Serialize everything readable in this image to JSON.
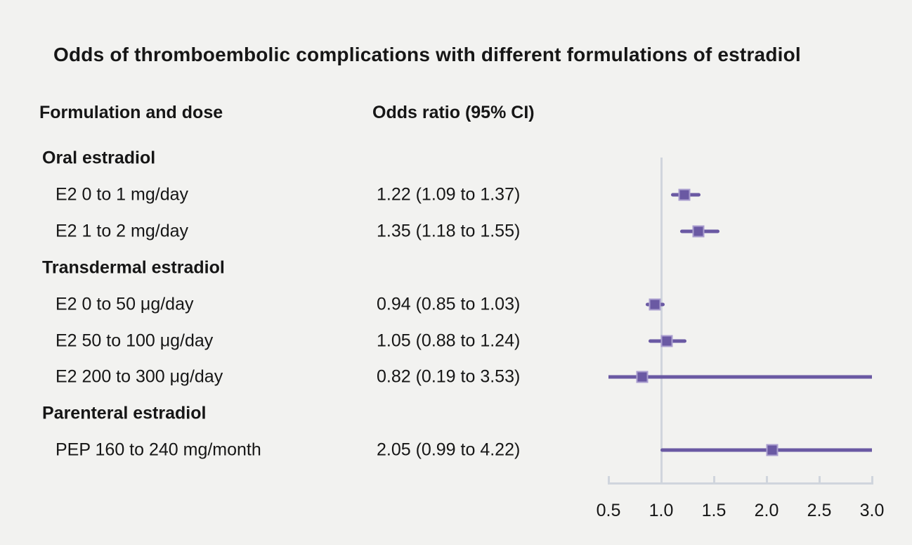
{
  "title": "Odds of thromboembolic complications with different formulations of estradiol",
  "columns": {
    "formulation": "Formulation and dose",
    "odds_ratio": "Odds ratio (95% CI)"
  },
  "colors": {
    "accent": "#6a59a3",
    "marker_border": "#aa9ecf",
    "axis_line": "#d0d5dd",
    "background": "#f2f2f0",
    "text": "#161616"
  },
  "chart_data": {
    "type": "forest",
    "title": "Odds of thromboembolic complications with different formulations of estradiol",
    "xlabel": "",
    "x_axis": {
      "min": 0.5,
      "max": 3.0,
      "reference_line": 1.0,
      "ticks": [
        {
          "value": 0.5,
          "label": "0.5"
        },
        {
          "value": 1.0,
          "label": "1.0"
        },
        {
          "value": 1.5,
          "label": "1.5"
        },
        {
          "value": 2.0,
          "label": "2.0"
        },
        {
          "value": 2.5,
          "label": "2.5"
        },
        {
          "value": 3.0,
          "label": "3.0"
        }
      ]
    },
    "rows": [
      {
        "kind": "group",
        "label": "Oral estradiol",
        "or_text": ""
      },
      {
        "kind": "item",
        "label": "E2 0 to 1 mg/day",
        "or_text": "1.22 (1.09 to 1.37)",
        "estimate": 1.22,
        "ci_low": 1.09,
        "ci_high": 1.37
      },
      {
        "kind": "item",
        "label": "E2 1 to 2 mg/day",
        "or_text": "1.35 (1.18 to 1.55)",
        "estimate": 1.35,
        "ci_low": 1.18,
        "ci_high": 1.55
      },
      {
        "kind": "group",
        "label": "Transdermal estradiol",
        "or_text": ""
      },
      {
        "kind": "item",
        "label": "E2 0 to 50 μg/day",
        "or_text": "0.94 (0.85 to 1.03)",
        "estimate": 0.94,
        "ci_low": 0.85,
        "ci_high": 1.03
      },
      {
        "kind": "item",
        "label": "E2 50 to 100 μg/day",
        "or_text": "1.05 (0.88 to 1.24)",
        "estimate": 1.05,
        "ci_low": 0.88,
        "ci_high": 1.24
      },
      {
        "kind": "item",
        "label": "E2 200 to 300 μg/day",
        "or_text": "0.82 (0.19 to 3.53)",
        "estimate": 0.82,
        "ci_low": 0.19,
        "ci_high": 3.53
      },
      {
        "kind": "group",
        "label": "Parenteral estradiol",
        "or_text": ""
      },
      {
        "kind": "item",
        "label": "PEP 160 to 240 mg/month",
        "or_text": "2.05 (0.99 to 4.22)",
        "estimate": 2.05,
        "ci_low": 0.99,
        "ci_high": 4.22
      }
    ]
  }
}
